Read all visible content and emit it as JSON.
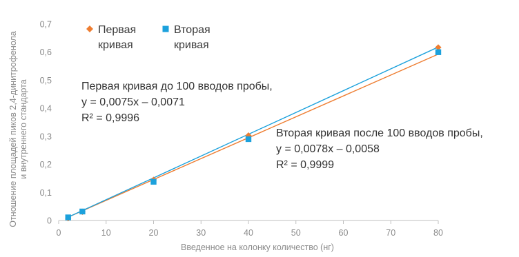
{
  "chart_data": {
    "type": "scatter",
    "title": "",
    "xlabel": "Введенное на колонку количество (нг)",
    "ylabel_lines": [
      "Отношение площадей пиков 2,4-динитрофенола",
      "и внутреннего стандарта"
    ],
    "xlim": [
      0,
      80
    ],
    "ylim": [
      0,
      0.7
    ],
    "x_ticks": [
      "0",
      "10",
      "20",
      "30",
      "40",
      "50",
      "60",
      "70",
      "80"
    ],
    "y_ticks": [
      "0",
      "0,1",
      "0,2",
      "0,3",
      "0,4",
      "0,5",
      "0,6",
      "0,7"
    ],
    "grid": false,
    "legend_position": "top-left",
    "series": [
      {
        "name_lines": [
          "Первая",
          "кривая"
        ],
        "color": "#ee7d31",
        "marker": "diamond",
        "x": [
          2,
          5,
          20,
          40,
          80
        ],
        "y": [
          0.008,
          0.031,
          0.145,
          0.303,
          0.617
        ],
        "trendline": {
          "slope": 0.0075,
          "intercept": -0.0071
        }
      },
      {
        "name_lines": [
          "Вторая",
          "кривая"
        ],
        "color": "#1ca1dc",
        "marker": "square",
        "x": [
          2,
          5,
          20,
          40,
          80
        ],
        "y": [
          0.011,
          0.032,
          0.138,
          0.29,
          0.6
        ],
        "trendline": {
          "slope": 0.0078,
          "intercept": -0.0058
        }
      }
    ],
    "annotations": [
      {
        "series": 0,
        "lines": [
          "Первая кривая до 100 вводов пробы,",
          "y = 0,0075x – 0,0071",
          "R² = 0,9996"
        ]
      },
      {
        "series": 1,
        "lines": [
          "Вторая кривая после 100 вводов пробы,",
          "y = 0,0078x – 0,0058",
          "R² = 0,9999"
        ]
      }
    ]
  }
}
